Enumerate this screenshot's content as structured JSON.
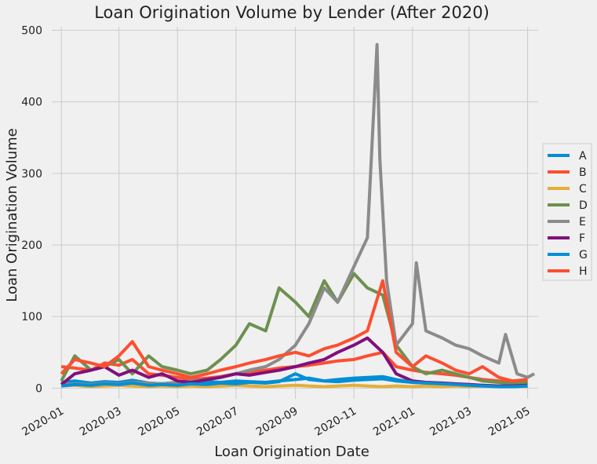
{
  "chart_data": {
    "type": "line",
    "title": "Loan Origination Volume by Lender (After 2020)",
    "xlabel": "Loan Origination Date",
    "ylabel": "Loan Origination Volume",
    "ylim": [
      -15,
      505
    ],
    "xlim": [
      "2019-12-22",
      "2021-05-12"
    ],
    "yticks": [
      0,
      100,
      200,
      300,
      400,
      500
    ],
    "xticks": [
      "2020-01",
      "2020-03",
      "2020-05",
      "2020-07",
      "2020-09",
      "2020-11",
      "2021-01",
      "2021-03",
      "2021-05"
    ],
    "grid": true,
    "legend_position": "right",
    "series": [
      {
        "name": "A",
        "color": "#008fd5",
        "points": [
          [
            "2020-01-01",
            8
          ],
          [
            "2020-01-15",
            10
          ],
          [
            "2020-02-01",
            7
          ],
          [
            "2020-02-15",
            9
          ],
          [
            "2020-03-01",
            8
          ],
          [
            "2020-03-15",
            11
          ],
          [
            "2020-04-01",
            7
          ],
          [
            "2020-04-15",
            6
          ],
          [
            "2020-05-01",
            8
          ],
          [
            "2020-05-15",
            7
          ],
          [
            "2020-06-01",
            9
          ],
          [
            "2020-06-15",
            8
          ],
          [
            "2020-07-01",
            10
          ],
          [
            "2020-07-15",
            9
          ],
          [
            "2020-08-01",
            8
          ],
          [
            "2020-08-15",
            10
          ],
          [
            "2020-09-01",
            12
          ],
          [
            "2020-09-15",
            14
          ],
          [
            "2020-10-01",
            10
          ],
          [
            "2020-10-15",
            9
          ],
          [
            "2020-11-01",
            11
          ],
          [
            "2020-11-15",
            12
          ],
          [
            "2020-12-01",
            13
          ],
          [
            "2020-12-15",
            10
          ],
          [
            "2021-01-01",
            8
          ],
          [
            "2021-01-15",
            7
          ],
          [
            "2021-02-01",
            6
          ],
          [
            "2021-02-15",
            5
          ],
          [
            "2021-03-01",
            4
          ],
          [
            "2021-03-15",
            3
          ],
          [
            "2021-04-01",
            3
          ],
          [
            "2021-04-15",
            2
          ],
          [
            "2021-05-01",
            3
          ]
        ]
      },
      {
        "name": "B",
        "color": "#fc4f30",
        "points": [
          [
            "2020-01-01",
            30
          ],
          [
            "2020-01-15",
            28
          ],
          [
            "2020-02-01",
            25
          ],
          [
            "2020-02-15",
            35
          ],
          [
            "2020-03-01",
            32
          ],
          [
            "2020-03-15",
            40
          ],
          [
            "2020-04-01",
            20
          ],
          [
            "2020-04-15",
            18
          ],
          [
            "2020-05-01",
            15
          ],
          [
            "2020-05-15",
            12
          ],
          [
            "2020-06-01",
            14
          ],
          [
            "2020-06-15",
            16
          ],
          [
            "2020-07-01",
            20
          ],
          [
            "2020-07-15",
            22
          ],
          [
            "2020-08-01",
            25
          ],
          [
            "2020-08-15",
            28
          ],
          [
            "2020-09-01",
            30
          ],
          [
            "2020-09-15",
            32
          ],
          [
            "2020-10-01",
            35
          ],
          [
            "2020-10-15",
            38
          ],
          [
            "2020-11-01",
            40
          ],
          [
            "2020-11-15",
            45
          ],
          [
            "2020-12-01",
            50
          ],
          [
            "2020-12-15",
            30
          ],
          [
            "2021-01-01",
            25
          ],
          [
            "2021-01-15",
            22
          ],
          [
            "2021-02-01",
            20
          ],
          [
            "2021-02-15",
            18
          ],
          [
            "2021-03-01",
            15
          ],
          [
            "2021-03-15",
            12
          ],
          [
            "2021-04-01",
            10
          ],
          [
            "2021-04-15",
            8
          ],
          [
            "2021-05-01",
            10
          ]
        ]
      },
      {
        "name": "C",
        "color": "#e5ae38",
        "points": [
          [
            "2020-01-01",
            3
          ],
          [
            "2020-01-15",
            4
          ],
          [
            "2020-02-01",
            2
          ],
          [
            "2020-02-15",
            3
          ],
          [
            "2020-03-01",
            4
          ],
          [
            "2020-03-15",
            3
          ],
          [
            "2020-04-01",
            2
          ],
          [
            "2020-04-15",
            3
          ],
          [
            "2020-05-01",
            2
          ],
          [
            "2020-05-15",
            3
          ],
          [
            "2020-06-01",
            2
          ],
          [
            "2020-06-15",
            3
          ],
          [
            "2020-07-01",
            4
          ],
          [
            "2020-07-15",
            3
          ],
          [
            "2020-08-01",
            2
          ],
          [
            "2020-08-15",
            3
          ],
          [
            "2020-09-01",
            4
          ],
          [
            "2020-09-15",
            3
          ],
          [
            "2020-10-01",
            2
          ],
          [
            "2020-10-15",
            3
          ],
          [
            "2020-11-01",
            4
          ],
          [
            "2020-11-15",
            3
          ],
          [
            "2020-12-01",
            2
          ],
          [
            "2020-12-15",
            3
          ],
          [
            "2021-01-01",
            2
          ],
          [
            "2021-01-15",
            3
          ],
          [
            "2021-02-01",
            2
          ],
          [
            "2021-02-15",
            3
          ],
          [
            "2021-03-01",
            2
          ],
          [
            "2021-03-15",
            3
          ],
          [
            "2021-04-01",
            2
          ],
          [
            "2021-04-15",
            3
          ],
          [
            "2021-05-01",
            2
          ]
        ]
      },
      {
        "name": "D",
        "color": "#6d904f",
        "points": [
          [
            "2020-01-01",
            10
          ],
          [
            "2020-01-15",
            45
          ],
          [
            "2020-02-01",
            25
          ],
          [
            "2020-02-15",
            30
          ],
          [
            "2020-03-01",
            40
          ],
          [
            "2020-03-15",
            20
          ],
          [
            "2020-04-01",
            45
          ],
          [
            "2020-04-15",
            30
          ],
          [
            "2020-05-01",
            25
          ],
          [
            "2020-05-15",
            20
          ],
          [
            "2020-06-01",
            25
          ],
          [
            "2020-06-15",
            40
          ],
          [
            "2020-07-01",
            60
          ],
          [
            "2020-07-15",
            90
          ],
          [
            "2020-08-01",
            80
          ],
          [
            "2020-08-15",
            140
          ],
          [
            "2020-09-01",
            120
          ],
          [
            "2020-09-15",
            100
          ],
          [
            "2020-10-01",
            150
          ],
          [
            "2020-10-15",
            120
          ],
          [
            "2020-11-01",
            160
          ],
          [
            "2020-11-15",
            140
          ],
          [
            "2020-12-01",
            130
          ],
          [
            "2020-12-15",
            60
          ],
          [
            "2021-01-01",
            30
          ],
          [
            "2021-01-15",
            20
          ],
          [
            "2021-02-01",
            25
          ],
          [
            "2021-02-15",
            20
          ],
          [
            "2021-03-01",
            15
          ],
          [
            "2021-03-15",
            10
          ],
          [
            "2021-04-01",
            8
          ],
          [
            "2021-04-15",
            6
          ],
          [
            "2021-05-01",
            8
          ]
        ]
      },
      {
        "name": "E",
        "color": "#8b8b8b",
        "points": [
          [
            "2020-01-01",
            5
          ],
          [
            "2020-01-15",
            6
          ],
          [
            "2020-02-01",
            5
          ],
          [
            "2020-02-15",
            7
          ],
          [
            "2020-03-01",
            6
          ],
          [
            "2020-03-15",
            8
          ],
          [
            "2020-04-01",
            7
          ],
          [
            "2020-04-15",
            6
          ],
          [
            "2020-05-01",
            8
          ],
          [
            "2020-05-15",
            10
          ],
          [
            "2020-06-01",
            12
          ],
          [
            "2020-06-15",
            15
          ],
          [
            "2020-07-01",
            20
          ],
          [
            "2020-07-15",
            25
          ],
          [
            "2020-08-01",
            30
          ],
          [
            "2020-08-15",
            40
          ],
          [
            "2020-09-01",
            60
          ],
          [
            "2020-09-15",
            90
          ],
          [
            "2020-10-01",
            140
          ],
          [
            "2020-10-15",
            120
          ],
          [
            "2020-11-01",
            170
          ],
          [
            "2020-11-15",
            210
          ],
          [
            "2020-11-25",
            480
          ],
          [
            "2020-11-28",
            320
          ],
          [
            "2020-12-05",
            150
          ],
          [
            "2020-12-15",
            60
          ],
          [
            "2021-01-01",
            90
          ],
          [
            "2021-01-05",
            175
          ],
          [
            "2021-01-15",
            80
          ],
          [
            "2021-02-01",
            70
          ],
          [
            "2021-02-15",
            60
          ],
          [
            "2021-03-01",
            55
          ],
          [
            "2021-03-15",
            45
          ],
          [
            "2021-04-01",
            35
          ],
          [
            "2021-04-08",
            75
          ],
          [
            "2021-04-20",
            20
          ],
          [
            "2021-05-01",
            15
          ],
          [
            "2021-05-08",
            20
          ]
        ]
      },
      {
        "name": "F",
        "color": "#810f7c",
        "points": [
          [
            "2020-01-01",
            5
          ],
          [
            "2020-01-15",
            20
          ],
          [
            "2020-02-01",
            25
          ],
          [
            "2020-02-15",
            30
          ],
          [
            "2020-03-01",
            18
          ],
          [
            "2020-03-15",
            25
          ],
          [
            "2020-04-01",
            15
          ],
          [
            "2020-04-15",
            20
          ],
          [
            "2020-05-01",
            10
          ],
          [
            "2020-05-15",
            8
          ],
          [
            "2020-06-01",
            12
          ],
          [
            "2020-06-15",
            15
          ],
          [
            "2020-07-01",
            20
          ],
          [
            "2020-07-15",
            18
          ],
          [
            "2020-08-01",
            22
          ],
          [
            "2020-08-15",
            25
          ],
          [
            "2020-09-01",
            30
          ],
          [
            "2020-09-15",
            35
          ],
          [
            "2020-10-01",
            40
          ],
          [
            "2020-10-15",
            50
          ],
          [
            "2020-11-01",
            60
          ],
          [
            "2020-11-15",
            70
          ],
          [
            "2020-12-01",
            50
          ],
          [
            "2020-12-15",
            20
          ],
          [
            "2021-01-01",
            10
          ],
          [
            "2021-01-15",
            8
          ],
          [
            "2021-02-01",
            7
          ],
          [
            "2021-02-15",
            6
          ],
          [
            "2021-03-01",
            5
          ],
          [
            "2021-03-15",
            4
          ],
          [
            "2021-04-01",
            3
          ],
          [
            "2021-04-15",
            3
          ],
          [
            "2021-05-01",
            4
          ]
        ]
      },
      {
        "name": "G",
        "color": "#008fd5",
        "points": [
          [
            "2020-01-01",
            3
          ],
          [
            "2020-01-15",
            5
          ],
          [
            "2020-02-01",
            4
          ],
          [
            "2020-02-15",
            6
          ],
          [
            "2020-03-01",
            5
          ],
          [
            "2020-03-15",
            7
          ],
          [
            "2020-04-01",
            4
          ],
          [
            "2020-04-15",
            5
          ],
          [
            "2020-05-01",
            4
          ],
          [
            "2020-05-15",
            6
          ],
          [
            "2020-06-01",
            5
          ],
          [
            "2020-06-15",
            7
          ],
          [
            "2020-07-01",
            6
          ],
          [
            "2020-07-15",
            8
          ],
          [
            "2020-08-01",
            7
          ],
          [
            "2020-08-15",
            9
          ],
          [
            "2020-09-01",
            20
          ],
          [
            "2020-09-15",
            12
          ],
          [
            "2020-10-01",
            10
          ],
          [
            "2020-10-15",
            12
          ],
          [
            "2020-11-01",
            14
          ],
          [
            "2020-11-15",
            15
          ],
          [
            "2020-12-01",
            16
          ],
          [
            "2020-12-15",
            12
          ],
          [
            "2021-01-01",
            8
          ],
          [
            "2021-01-15",
            7
          ],
          [
            "2021-02-01",
            6
          ],
          [
            "2021-02-15",
            5
          ],
          [
            "2021-03-01",
            4
          ],
          [
            "2021-03-15",
            3
          ],
          [
            "2021-04-01",
            2
          ],
          [
            "2021-04-15",
            2
          ],
          [
            "2021-05-01",
            3
          ]
        ]
      },
      {
        "name": "H",
        "color": "#fc4f30",
        "points": [
          [
            "2020-01-01",
            20
          ],
          [
            "2020-01-15",
            40
          ],
          [
            "2020-02-01",
            35
          ],
          [
            "2020-02-15",
            30
          ],
          [
            "2020-03-01",
            45
          ],
          [
            "2020-03-15",
            65
          ],
          [
            "2020-04-01",
            30
          ],
          [
            "2020-04-15",
            25
          ],
          [
            "2020-05-01",
            20
          ],
          [
            "2020-05-15",
            15
          ],
          [
            "2020-06-01",
            20
          ],
          [
            "2020-06-15",
            25
          ],
          [
            "2020-07-01",
            30
          ],
          [
            "2020-07-15",
            35
          ],
          [
            "2020-08-01",
            40
          ],
          [
            "2020-08-15",
            45
          ],
          [
            "2020-09-01",
            50
          ],
          [
            "2020-09-15",
            45
          ],
          [
            "2020-10-01",
            55
          ],
          [
            "2020-10-15",
            60
          ],
          [
            "2020-11-01",
            70
          ],
          [
            "2020-11-15",
            80
          ],
          [
            "2020-12-01",
            150
          ],
          [
            "2020-12-15",
            50
          ],
          [
            "2021-01-01",
            30
          ],
          [
            "2021-01-15",
            45
          ],
          [
            "2021-02-01",
            35
          ],
          [
            "2021-02-15",
            25
          ],
          [
            "2021-03-01",
            20
          ],
          [
            "2021-03-15",
            30
          ],
          [
            "2021-04-01",
            15
          ],
          [
            "2021-04-15",
            10
          ],
          [
            "2021-05-01",
            12
          ]
        ]
      }
    ]
  }
}
